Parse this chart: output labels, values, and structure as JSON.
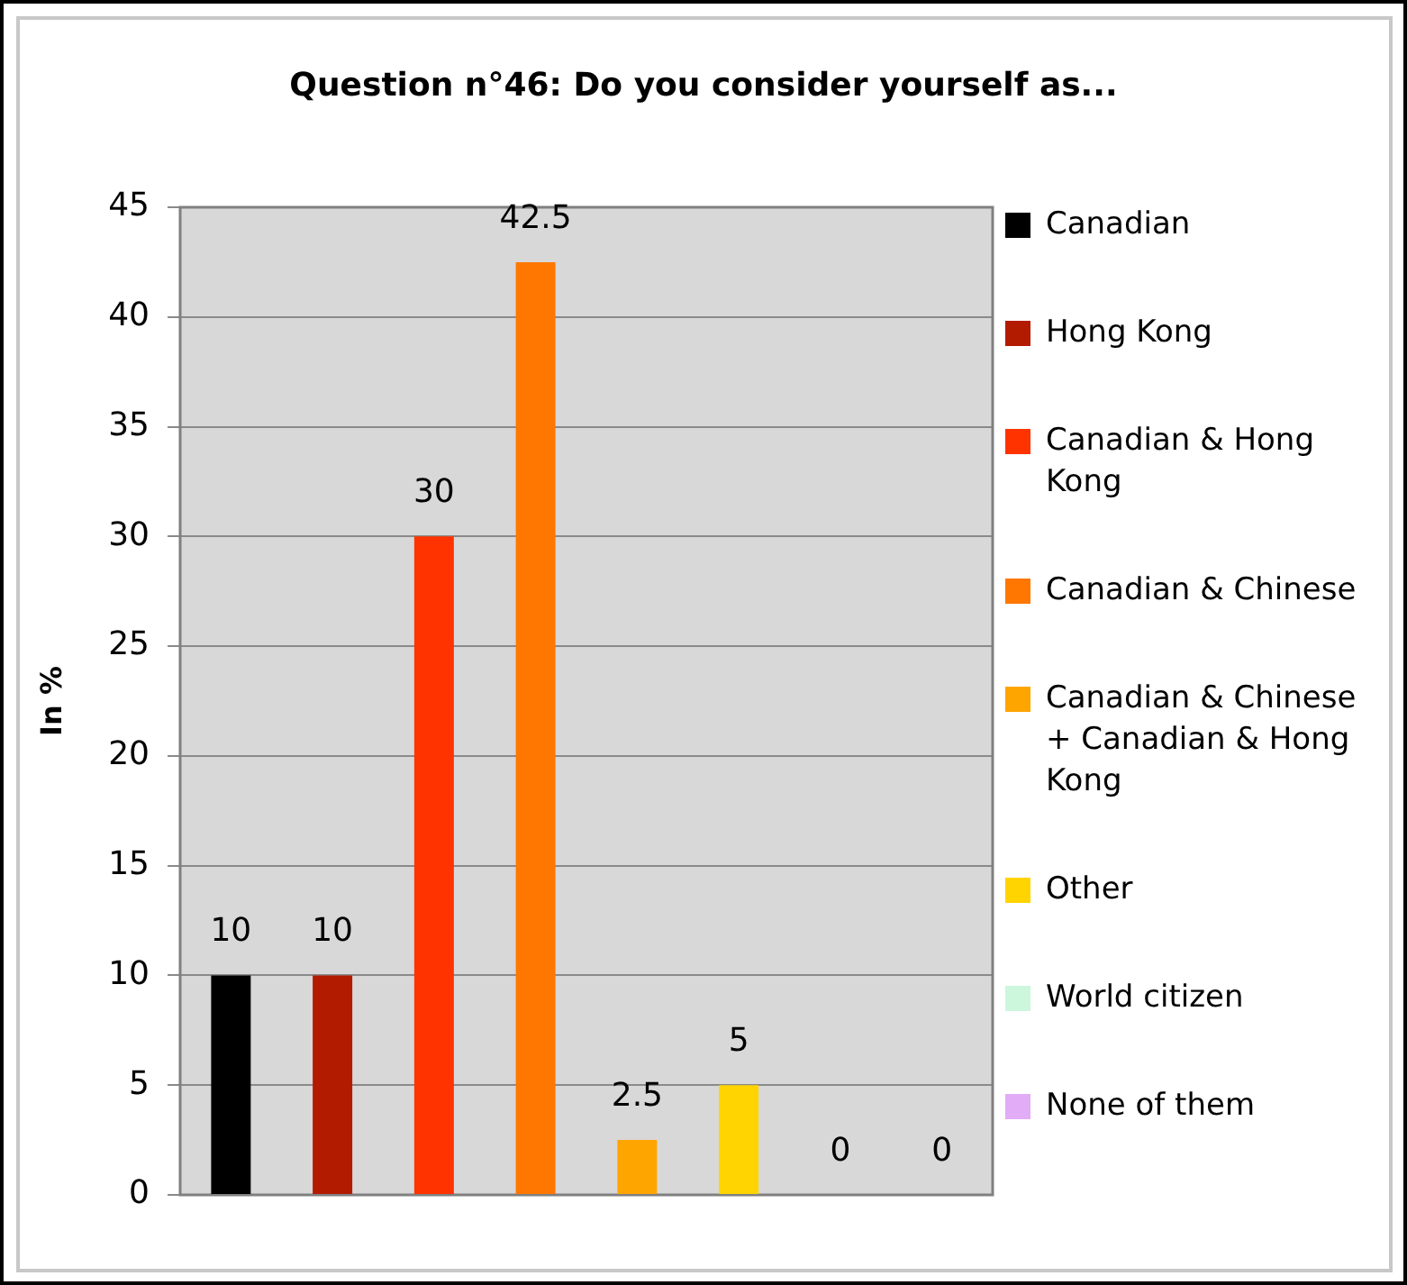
{
  "chart_data": {
    "type": "bar",
    "title": "Question n°46: Do you consider yourself as...",
    "ylabel": "In %",
    "categories": [
      null,
      null,
      null,
      null,
      null,
      null,
      null,
      null
    ],
    "series": [
      {
        "name": "Canadian",
        "color": "#000000",
        "values": [
          10,
          null,
          null,
          null,
          null,
          null,
          null,
          null
        ]
      },
      {
        "name": "Hong Kong",
        "color": "#b31b00",
        "values": [
          null,
          10,
          null,
          null,
          null,
          null,
          null,
          null
        ]
      },
      {
        "name": "Canadian & Hong Kong",
        "color": "#ff3300",
        "values": [
          null,
          null,
          30,
          null,
          null,
          null,
          null,
          null
        ]
      },
      {
        "name": "Canadian & Chinese",
        "color": "#ff7700",
        "values": [
          null,
          null,
          null,
          42.5,
          null,
          null,
          null,
          null
        ]
      },
      {
        "name": "Canadian & Chinese + Canadian & Hong Kong",
        "color": "#ffa500",
        "values": [
          null,
          null,
          null,
          null,
          2.5,
          null,
          null,
          null
        ]
      },
      {
        "name": "Other",
        "color": "#ffd400",
        "values": [
          null,
          null,
          null,
          null,
          null,
          5,
          null,
          null
        ]
      },
      {
        "name": "World citizen",
        "color": "#ccf7dd",
        "values": [
          null,
          null,
          null,
          null,
          null,
          null,
          0,
          null
        ]
      },
      {
        "name": "None of them",
        "color": "#e2acf7",
        "values": [
          null,
          null,
          null,
          null,
          null,
          null,
          null,
          0
        ]
      }
    ],
    "ylim": [
      0,
      45
    ],
    "yticks": [
      0,
      5,
      10,
      15,
      20,
      25,
      30,
      35,
      40,
      45
    ],
    "grid": "y",
    "legend": "right",
    "tick_labels": "y",
    "data_labels": true
  }
}
